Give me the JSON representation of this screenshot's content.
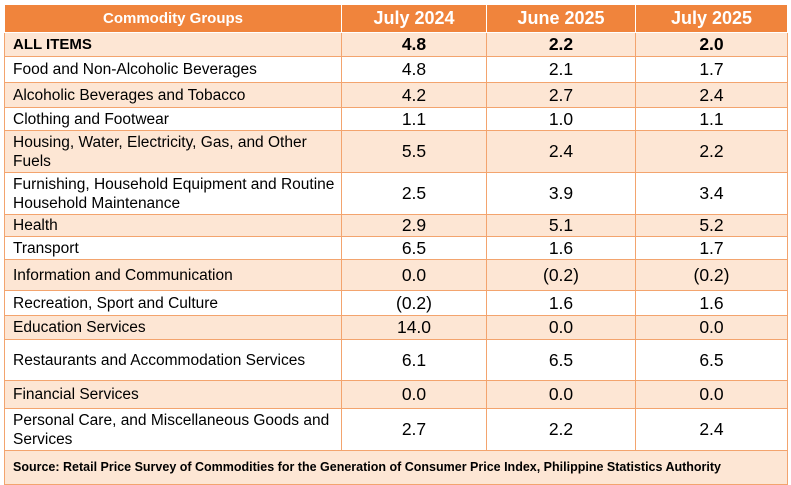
{
  "table": {
    "headers": [
      "Commodity Groups",
      "July 2024",
      "June 2025",
      "July 2025"
    ],
    "rows": [
      {
        "label": "ALL ITEMS",
        "values": [
          "4.8",
          "2.2",
          "2.0"
        ]
      },
      {
        "label": "Food and Non-Alcoholic Beverages",
        "values": [
          "4.8",
          "2.1",
          "1.7"
        ]
      },
      {
        "label": "Alcoholic Beverages and Tobacco",
        "values": [
          "4.2",
          "2.7",
          "2.4"
        ]
      },
      {
        "label": "Clothing and Footwear",
        "values": [
          "1.1",
          "1.0",
          "1.1"
        ]
      },
      {
        "label": "Housing, Water, Electricity, Gas, and Other Fuels",
        "values": [
          "5.5",
          "2.4",
          "2.2"
        ]
      },
      {
        "label": "Furnishing, Household Equipment and Routine Household Maintenance",
        "values": [
          "2.5",
          "3.9",
          "3.4"
        ]
      },
      {
        "label": "Health",
        "values": [
          "2.9",
          "5.1",
          "5.2"
        ]
      },
      {
        "label": "Transport",
        "values": [
          "6.5",
          "1.6",
          "1.7"
        ]
      },
      {
        "label": "Information and Communication",
        "values": [
          "0.0",
          "(0.2)",
          "(0.2)"
        ]
      },
      {
        "label": "Recreation, Sport and Culture",
        "values": [
          "(0.2)",
          "1.6",
          "1.6"
        ]
      },
      {
        "label": "Education Services",
        "values": [
          "14.0",
          "0.0",
          "0.0"
        ]
      },
      {
        "label": "Restaurants and Accommodation Services",
        "values": [
          "6.1",
          "6.5",
          "6.5"
        ]
      },
      {
        "label": "Financial Services",
        "values": [
          "0.0",
          "0.0",
          "0.0"
        ]
      },
      {
        "label": "Personal Care, and Miscellaneous Goods and Services",
        "values": [
          "2.7",
          "2.2",
          "2.4"
        ]
      }
    ],
    "source": "Source: Retail Price Survey of Commodities for the Generation of Consumer Price Index, Philippine Statistics Authority"
  },
  "colors": {
    "header": "#f0843c",
    "band": "#fde6d4",
    "border": "#f3a46e"
  }
}
